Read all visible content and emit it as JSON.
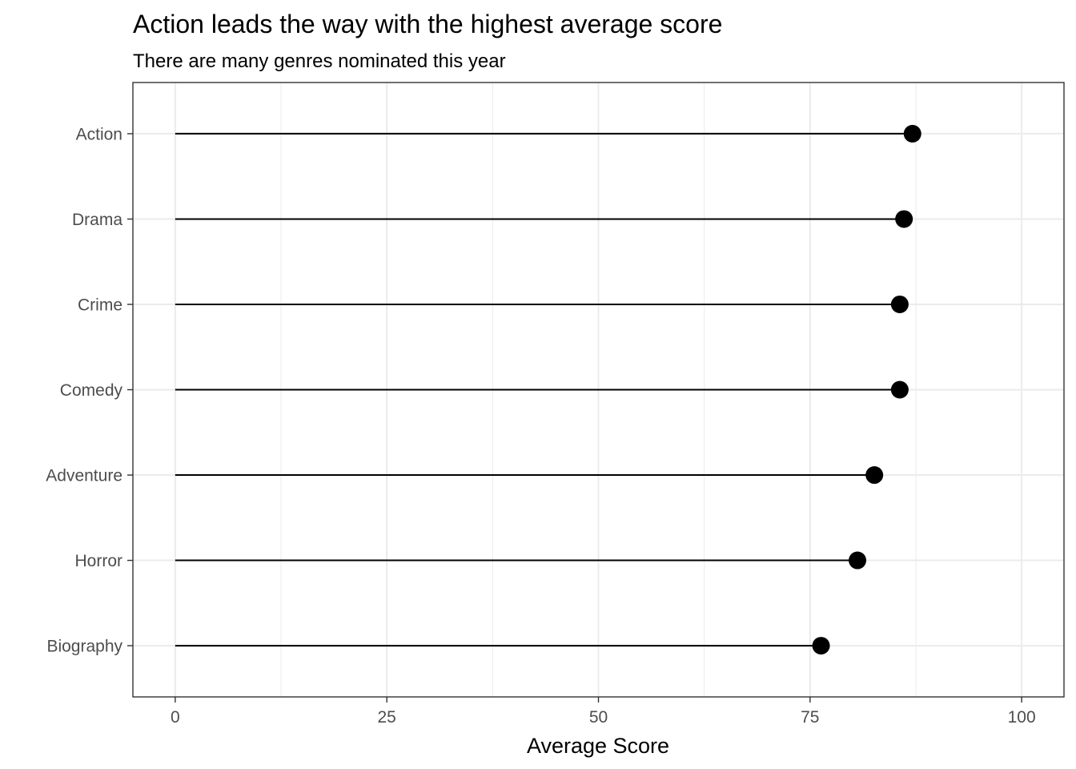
{
  "chart_data": {
    "type": "lollipop",
    "title": "Action leads the way with the highest average score",
    "subtitle": "There are many genres nominated this year",
    "xlabel": "Average Score",
    "ylabel": "",
    "xlim": [
      -5,
      105
    ],
    "xticks": [
      0,
      25,
      50,
      75,
      100
    ],
    "xtick_labels": [
      "0",
      "25",
      "50",
      "75",
      "100"
    ],
    "grid": true,
    "categories": [
      "Action",
      "Drama",
      "Crime",
      "Comedy",
      "Adventure",
      "Horror",
      "Biography"
    ],
    "values": [
      87.1,
      86.1,
      85.6,
      85.6,
      82.6,
      80.6,
      76.3
    ],
    "baseline": 0,
    "colors": {
      "point": "#000000",
      "segment": "#000000",
      "grid": "#ebebeb",
      "panel_border": "#333333",
      "tick_text": "#4d4d4d"
    }
  }
}
